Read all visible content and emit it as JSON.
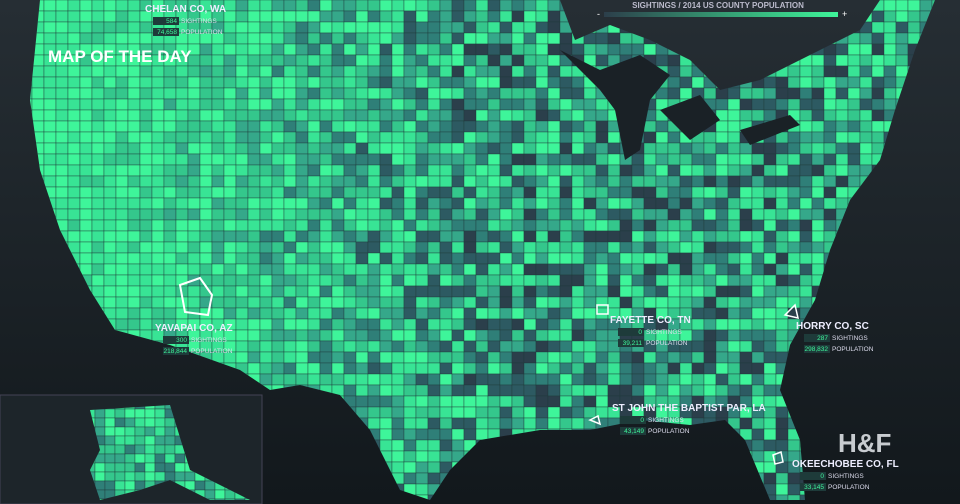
{
  "header": {
    "title": "MAP OF THE DAY",
    "brand": "H&F"
  },
  "legend": {
    "title": "SIGHTINGS / 2014 US COUNTY POPULATION",
    "low": "-",
    "high": "+"
  },
  "callouts": [
    {
      "name": "CHELAN CO, WA",
      "sightings": {
        "count": "584",
        "unit": "SIGHTINGS"
      },
      "population": {
        "count": "74,658",
        "unit": "POPULATION"
      }
    },
    {
      "name": "YAVAPAI CO, AZ",
      "sightings": {
        "count": "300",
        "unit": "SIGHTINGS"
      },
      "population": {
        "count": "218,844",
        "unit": "POPULATION"
      }
    },
    {
      "name": "FAYETTE CO, TN",
      "sightings": {
        "count": "0",
        "unit": "SIGHTINGS"
      },
      "population": {
        "count": "39,211",
        "unit": "POPULATION"
      }
    },
    {
      "name": "HORRY CO, SC",
      "sightings": {
        "count": "287",
        "unit": "SIGHTINGS"
      },
      "population": {
        "count": "298,832",
        "unit": "POPULATION"
      }
    },
    {
      "name": "ST JOHN THE BAPTIST PAR, LA",
      "sightings": {
        "count": "0",
        "unit": "SIGHTINGS"
      },
      "population": {
        "count": "43,149",
        "unit": "POPULATION"
      }
    },
    {
      "name": "OKEECHOBEE CO, FL",
      "sightings": {
        "count": "0",
        "unit": "SIGHTINGS"
      },
      "population": {
        "count": "33,145",
        "unit": "POPULATION"
      }
    }
  ]
}
